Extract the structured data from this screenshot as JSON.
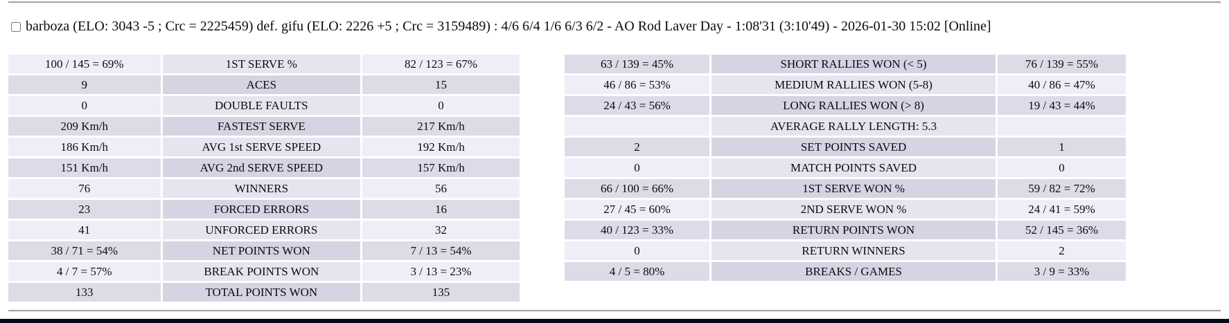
{
  "header": {
    "checkbox_checked": false,
    "title": "barboza (ELO: 3043 -5 ; Crc = 2225459) def. gifu (ELO: 2226 +5 ; Crc = 3159489) : 4/6 6/4 1/6 6/3 6/2 - AO Rod Laver Day - 1:08'31 (3:10'49) - 2026-01-30 15:02 [Online]"
  },
  "colors": {
    "row_light_value": "#eeeef8",
    "row_light_label": "#e5e5f0",
    "row_dark_value": "#dcdce8",
    "row_dark_label": "#d4d4e2",
    "bottom_bar": "#0a0a16",
    "divider": "#a3a3a3",
    "text": "#0a0a14"
  },
  "stats_tables": [
    {
      "id": "serve-stats-table",
      "first_row_shade": "light",
      "columns_pct": [
        30,
        39,
        31
      ],
      "rows": [
        {
          "p1": "100 / 145 = 69%",
          "label": "1ST SERVE %",
          "p2": "82 / 123 = 67%"
        },
        {
          "p1": "9",
          "label": "ACES",
          "p2": "15"
        },
        {
          "p1": "0",
          "label": "DOUBLE FAULTS",
          "p2": "0"
        },
        {
          "p1": "209 Km/h",
          "label": "FASTEST SERVE",
          "p2": "217 Km/h"
        },
        {
          "p1": "186 Km/h",
          "label": "AVG 1st SERVE SPEED",
          "p2": "192 Km/h"
        },
        {
          "p1": "151 Km/h",
          "label": "AVG 2nd SERVE SPEED",
          "p2": "157 Km/h"
        },
        {
          "p1": "76",
          "label": "WINNERS",
          "p2": "56"
        },
        {
          "p1": "23",
          "label": "FORCED ERRORS",
          "p2": "16"
        },
        {
          "p1": "41",
          "label": "UNFORCED ERRORS",
          "p2": "32"
        },
        {
          "p1": "38 / 71 = 54%",
          "label": "NET POINTS WON",
          "p2": "7 / 13 = 54%"
        },
        {
          "p1": "4 / 7 = 57%",
          "label": "BREAK POINTS WON",
          "p2": "3 / 13 = 23%"
        },
        {
          "p1": "133",
          "label": "TOTAL POINTS WON",
          "p2": "135"
        }
      ]
    },
    {
      "id": "rally-return-stats-table",
      "first_row_shade": "dark",
      "columns_pct": [
        26,
        51,
        23
      ],
      "rows": [
        {
          "p1": "63 / 139 = 45%",
          "label": "SHORT RALLIES WON (< 5)",
          "p2": "76 / 139 = 55%"
        },
        {
          "p1": "46 / 86 = 53%",
          "label": "MEDIUM RALLIES WON (5-8)",
          "p2": "40 / 86 = 47%"
        },
        {
          "p1": "24 / 43 = 56%",
          "label": "LONG RALLIES WON (> 8)",
          "p2": "19 / 43 = 44%"
        },
        {
          "p1": "",
          "label": "AVERAGE RALLY LENGTH: 5.3",
          "p2": ""
        },
        {
          "p1": "2",
          "label": "SET POINTS SAVED",
          "p2": "1"
        },
        {
          "p1": "0",
          "label": "MATCH POINTS SAVED",
          "p2": "0"
        },
        {
          "p1": "66 / 100 = 66%",
          "label": "1ST SERVE WON %",
          "p2": "59 / 82 = 72%"
        },
        {
          "p1": "27 / 45 = 60%",
          "label": "2ND SERVE WON %",
          "p2": "24 / 41 = 59%"
        },
        {
          "p1": "40 / 123 = 33%",
          "label": "RETURN POINTS WON",
          "p2": "52 / 145 = 36%"
        },
        {
          "p1": "0",
          "label": "RETURN WINNERS",
          "p2": "2"
        },
        {
          "p1": "4 / 5 = 80%",
          "label": "BREAKS / GAMES",
          "p2": "3 / 9 = 33%"
        }
      ]
    }
  ]
}
